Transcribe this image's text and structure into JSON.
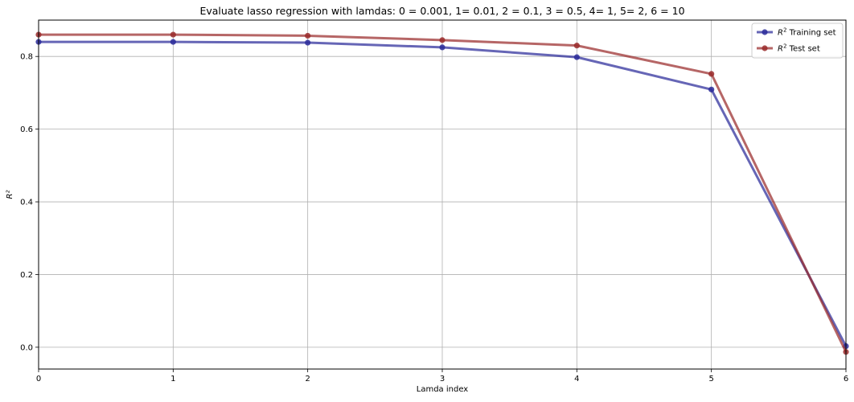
{
  "chart_data": {
    "type": "line",
    "title": "Evaluate lasso regression with lamdas: 0 = 0.001, 1= 0.01, 2 = 0.1, 3 = 0.5, 4= 1, 5= 2, 6 = 10",
    "xlabel": "Lamda index",
    "ylabel": "R²",
    "xlim": [
      0,
      6
    ],
    "ylim": [
      -0.06,
      0.9
    ],
    "xticks": [
      0,
      1,
      2,
      3,
      4,
      5,
      6
    ],
    "xtick_labels": [
      "0",
      "1",
      "2",
      "3",
      "4",
      "5",
      "6"
    ],
    "yticks": [
      0.0,
      0.2,
      0.4,
      0.6,
      0.8
    ],
    "ytick_labels": [
      "0.0",
      "0.2",
      "0.4",
      "0.6",
      "0.8"
    ],
    "grid": true,
    "legend_position": "top-right",
    "x": [
      0,
      1,
      2,
      3,
      4,
      5,
      6
    ],
    "series": [
      {
        "name": "R² Training set",
        "name_parts": {
          "sym": "R",
          "sup": "2",
          "rest": " Training set"
        },
        "color": "#2b2b9a",
        "values": [
          0.84,
          0.84,
          0.838,
          0.825,
          0.798,
          0.709,
          0.003
        ]
      },
      {
        "name": "R² Test set",
        "name_parts": {
          "sym": "R",
          "sup": "2",
          "rest": " Test set"
        },
        "color": "#9a2b2b",
        "values": [
          0.86,
          0.86,
          0.857,
          0.845,
          0.83,
          0.752,
          -0.013
        ]
      }
    ]
  }
}
